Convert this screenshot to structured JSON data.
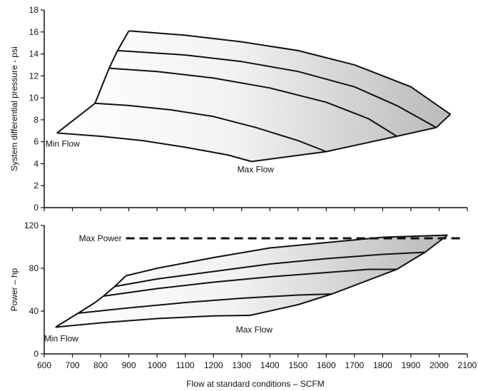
{
  "chart_data": [
    {
      "type": "line",
      "ylabel": "System differential pressure - psi",
      "xlim": [
        600,
        2100
      ],
      "ylim": [
        0,
        18
      ],
      "yticks": [
        0,
        2,
        4,
        6,
        8,
        10,
        12,
        14,
        16,
        18
      ],
      "grid": false,
      "envelope": {
        "min_flow": [
          [
            645,
            6.8
          ],
          [
            780,
            9.5
          ],
          [
            830,
            12.7
          ],
          [
            860,
            14.3
          ],
          [
            900,
            16.1
          ]
        ],
        "top": [
          [
            900,
            16.1
          ],
          [
            1100,
            15.7
          ],
          [
            1300,
            15.1
          ],
          [
            1500,
            14.3
          ],
          [
            1700,
            13.0
          ],
          [
            1900,
            11.0
          ],
          [
            2040,
            8.5
          ]
        ],
        "max_flow": [
          [
            1335,
            4.2
          ],
          [
            1600,
            5.1
          ],
          [
            1850,
            6.5
          ],
          [
            1990,
            7.3
          ],
          [
            2040,
            8.5
          ]
        ]
      },
      "series": [
        {
          "values": [
            [
              645,
              6.8
            ],
            [
              800,
              6.5
            ],
            [
              950,
              6.1
            ],
            [
              1100,
              5.5
            ],
            [
              1250,
              4.8
            ],
            [
              1335,
              4.2
            ]
          ]
        },
        {
          "values": [
            [
              780,
              9.5
            ],
            [
              900,
              9.3
            ],
            [
              1050,
              8.9
            ],
            [
              1200,
              8.3
            ],
            [
              1350,
              7.3
            ],
            [
              1500,
              6.1
            ],
            [
              1600,
              5.1
            ]
          ]
        },
        {
          "values": [
            [
              830,
              12.7
            ],
            [
              1000,
              12.4
            ],
            [
              1200,
              11.8
            ],
            [
              1400,
              10.9
            ],
            [
              1600,
              9.6
            ],
            [
              1750,
              8.1
            ],
            [
              1850,
              6.5
            ]
          ]
        },
        {
          "values": [
            [
              860,
              14.3
            ],
            [
              1100,
              13.9
            ],
            [
              1300,
              13.3
            ],
            [
              1500,
              12.4
            ],
            [
              1700,
              11.0
            ],
            [
              1850,
              9.3
            ],
            [
              1990,
              7.3
            ]
          ]
        }
      ],
      "annotations": [
        "Min Flow",
        "Max Flow"
      ]
    },
    {
      "type": "line",
      "xlabel": "Flow at standard conditions – SCFM",
      "ylabel": "Power – hp",
      "xlim": [
        600,
        2100
      ],
      "ylim": [
        0,
        120
      ],
      "xticks": [
        600,
        700,
        800,
        900,
        1000,
        1100,
        1200,
        1300,
        1400,
        1500,
        1600,
        1700,
        1800,
        1900,
        2000,
        2100
      ],
      "yticks": [
        0,
        40,
        80,
        120
      ],
      "grid": false,
      "max_power": {
        "label": "Max Power",
        "value": 108
      },
      "envelope": {
        "min_flow": [
          [
            640,
            25
          ],
          [
            720,
            38
          ],
          [
            780,
            48
          ],
          [
            810,
            54
          ],
          [
            850,
            63
          ],
          [
            890,
            73
          ]
        ],
        "top": [
          [
            890,
            73
          ],
          [
            1000,
            80
          ],
          [
            1200,
            90
          ],
          [
            1400,
            99
          ],
          [
            1600,
            104
          ],
          [
            1800,
            109
          ],
          [
            2030,
            111
          ]
        ],
        "max_flow": [
          [
            1330,
            36
          ],
          [
            1500,
            46
          ],
          [
            1620,
            56
          ],
          [
            1850,
            79
          ],
          [
            1950,
            95
          ],
          [
            2030,
            111
          ]
        ]
      },
      "series": [
        {
          "values": [
            [
              640,
              25
            ],
            [
              800,
              29
            ],
            [
              1000,
              33
            ],
            [
              1200,
              35.5
            ],
            [
              1330,
              36
            ]
          ]
        },
        {
          "values": [
            [
              720,
              38
            ],
            [
              900,
              43
            ],
            [
              1100,
              48
            ],
            [
              1300,
              52
            ],
            [
              1500,
              55
            ],
            [
              1620,
              56
            ]
          ]
        },
        {
          "values": [
            [
              810,
              54
            ],
            [
              1000,
              61
            ],
            [
              1200,
              67
            ],
            [
              1400,
              72
            ],
            [
              1600,
              76
            ],
            [
              1750,
              79
            ],
            [
              1850,
              79
            ]
          ]
        },
        {
          "values": [
            [
              850,
              63
            ],
            [
              1000,
              70
            ],
            [
              1200,
              77
            ],
            [
              1400,
              84
            ],
            [
              1600,
              89
            ],
            [
              1800,
              93
            ],
            [
              1950,
              95
            ]
          ]
        }
      ],
      "annotations": [
        "Min Flow",
        "Max Flow"
      ]
    }
  ]
}
